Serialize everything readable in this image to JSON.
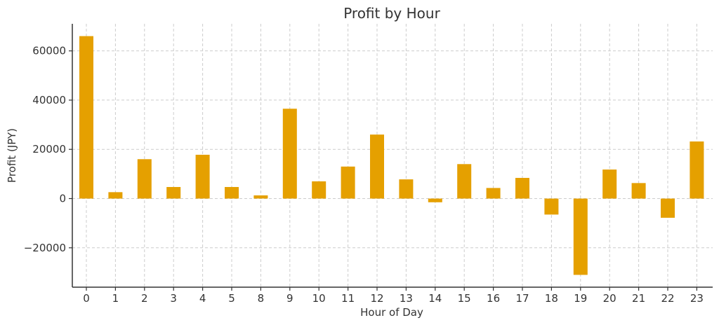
{
  "chart_data": {
    "type": "bar",
    "title": "Profit by Hour",
    "xlabel": "Hour of Day",
    "ylabel": "Profit (JPY)",
    "categories": [
      "0",
      "1",
      "2",
      "3",
      "4",
      "5",
      "8",
      "9",
      "10",
      "11",
      "12",
      "13",
      "14",
      "15",
      "16",
      "17",
      "18",
      "19",
      "20",
      "21",
      "22",
      "23"
    ],
    "values": [
      66000,
      2600,
      16000,
      4700,
      17800,
      4700,
      1300,
      36500,
      7000,
      13000,
      26000,
      7800,
      -1500,
      14000,
      4300,
      8400,
      -6500,
      -31000,
      11800,
      6300,
      -7800,
      23200
    ],
    "yticks": [
      -20000,
      0,
      20000,
      40000,
      60000
    ],
    "ytick_labels": [
      "−20000",
      "0",
      "20000",
      "40000",
      "60000"
    ],
    "ylim": [
      -36000,
      71000
    ],
    "grid": true,
    "bar_color": "#e5a000"
  }
}
